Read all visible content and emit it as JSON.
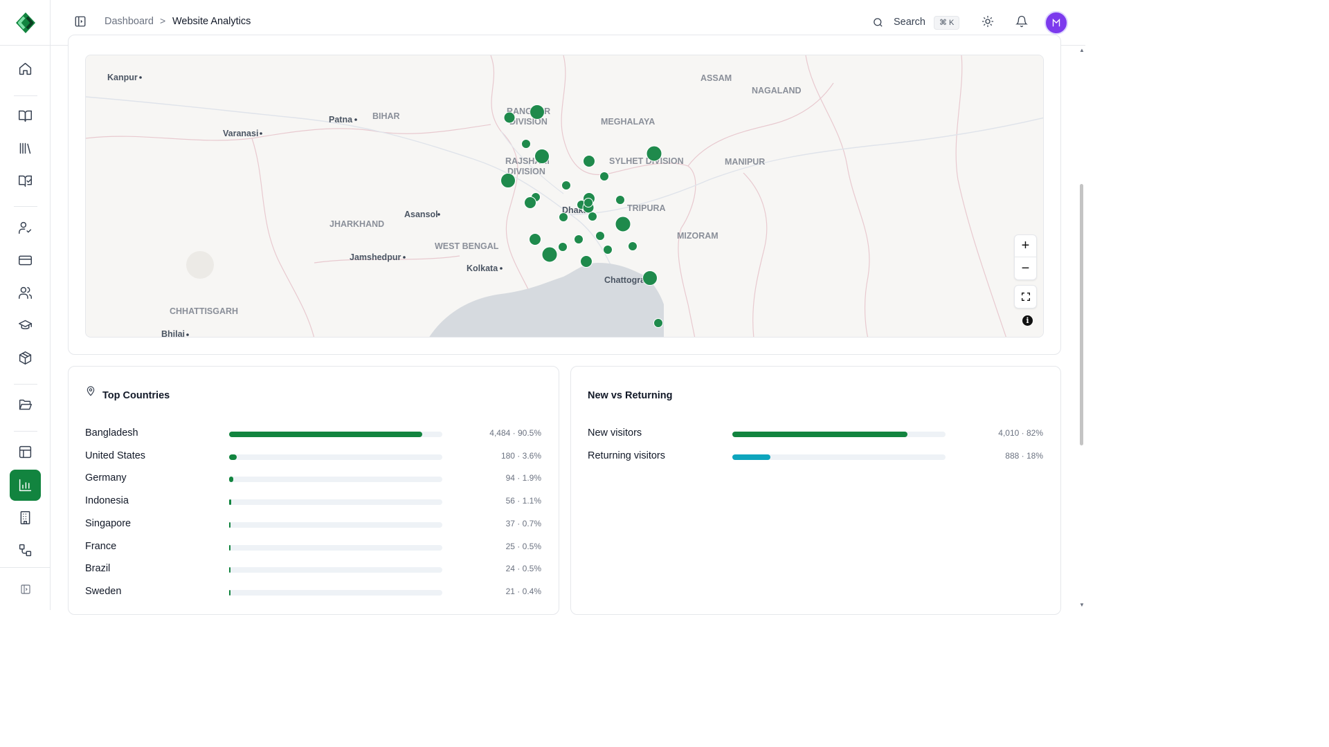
{
  "breadcrumb": {
    "parent": "Dashboard",
    "separator": ">",
    "current": "Website Analytics"
  },
  "search": {
    "label": "Search",
    "shortcut": "⌘ K"
  },
  "colors": {
    "brand": "#12843f",
    "teal": "#0ea5bd",
    "avatar": "#7c3aed"
  },
  "sidebar": {
    "items": [
      {
        "icon": "home-icon"
      },
      {
        "icon": "book-open-icon"
      },
      {
        "icon": "library-icon"
      },
      {
        "icon": "book-check-icon"
      },
      {
        "icon": "user-check-icon"
      },
      {
        "icon": "credit-card-icon"
      },
      {
        "icon": "users-icon"
      },
      {
        "icon": "graduation-cap-icon"
      },
      {
        "icon": "package-icon"
      },
      {
        "icon": "folder-open-icon"
      },
      {
        "icon": "layout-icon"
      },
      {
        "icon": "bar-chart-icon",
        "active": true
      },
      {
        "icon": "building-icon"
      },
      {
        "icon": "workflow-icon"
      }
    ]
  },
  "map": {
    "places": [
      "Kanpur",
      "Patna",
      "BIHAR",
      "Varanasi",
      "ASSAM",
      "NAGALAND",
      "MEGHALAYA",
      "RANGPUR",
      "DIVISION",
      "RAJSHAHI",
      "DIVISION",
      "SYLHET DIVISION",
      "MANIPUR",
      "JHARKHAND",
      "Asansol",
      "Dhaka",
      "TRIPURA",
      "WEST BENGAL",
      "MIZORAM",
      "Jamshedpur",
      "Kolkata",
      "Chattogram",
      "CHHATTISGARH",
      "Bhilai"
    ],
    "zoom_in": "+",
    "zoom_out": "−",
    "info": "i"
  },
  "top_countries": {
    "title": "Top Countries",
    "rows": [
      {
        "name": "Bangladesh",
        "count": "4,484",
        "pct": "90.5%",
        "fraction": 0.905
      },
      {
        "name": "United States",
        "count": "180",
        "pct": "3.6%",
        "fraction": 0.036
      },
      {
        "name": "Germany",
        "count": "94",
        "pct": "1.9%",
        "fraction": 0.019
      },
      {
        "name": "Indonesia",
        "count": "56",
        "pct": "1.1%",
        "fraction": 0.011
      },
      {
        "name": "Singapore",
        "count": "37",
        "pct": "0.7%",
        "fraction": 0.007
      },
      {
        "name": "France",
        "count": "25",
        "pct": "0.5%",
        "fraction": 0.005
      },
      {
        "name": "Brazil",
        "count": "24",
        "pct": "0.5%",
        "fraction": 0.005
      },
      {
        "name": "Sweden",
        "count": "21",
        "pct": "0.4%",
        "fraction": 0.004
      }
    ]
  },
  "new_vs_returning": {
    "title": "New vs Returning",
    "rows": [
      {
        "name": "New visitors",
        "count": "4,010",
        "pct": "82%",
        "fraction": 0.82,
        "color": "#12843f"
      },
      {
        "name": "Returning visitors",
        "count": "888",
        "pct": "18%",
        "fraction": 0.18,
        "color": "#0ea5bd"
      }
    ]
  }
}
